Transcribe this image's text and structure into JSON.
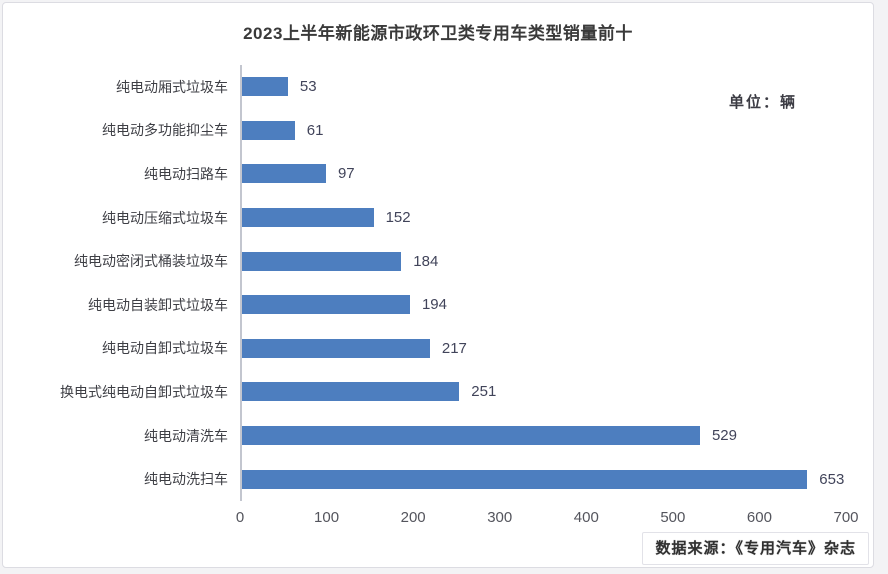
{
  "chart_data": {
    "type": "bar",
    "orientation": "horizontal",
    "title": "2023上半年新能源市政环卫类专用车类型销量前十",
    "unit_label": "单位：辆",
    "categories": [
      "纯电动厢式垃圾车",
      "纯电动多功能抑尘车",
      "纯电动扫路车",
      "纯电动压缩式垃圾车",
      "纯电动密闭式桶装垃圾车",
      "纯电动自装卸式垃圾车",
      "纯电动自卸式垃圾车",
      "换电式纯电动自卸式垃圾车",
      "纯电动清洗车",
      "纯电动洗扫车"
    ],
    "values": [
      53,
      61,
      97,
      152,
      184,
      194,
      217,
      251,
      529,
      653
    ],
    "xlim": [
      0,
      700
    ],
    "x_ticks": [
      0,
      100,
      200,
      300,
      400,
      500,
      600,
      700
    ],
    "bar_color": "#4d7ebf",
    "grid": false,
    "legend": null,
    "source_note": "数据来源：《专用汽车》杂志"
  }
}
